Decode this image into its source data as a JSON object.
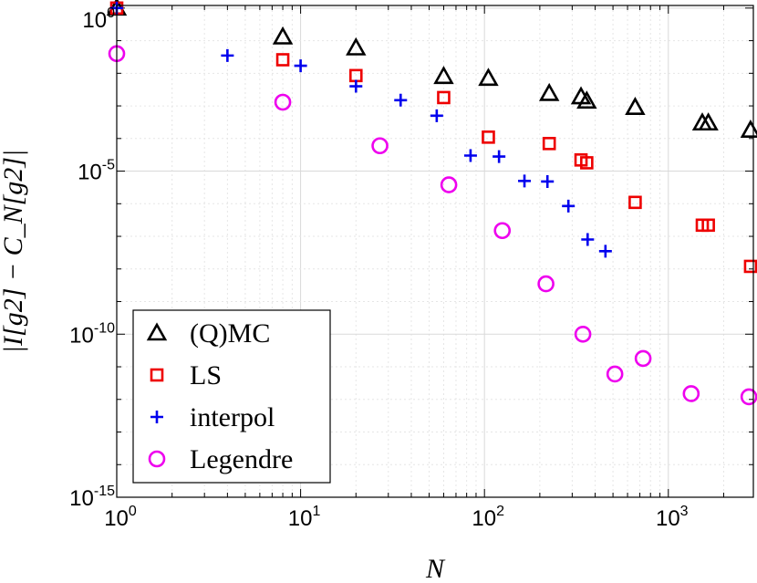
{
  "chart_data": {
    "type": "scatter",
    "title": "",
    "xlabel": "N",
    "ylabel": "|I[g2] − C_N[g2]|",
    "xscale": "log",
    "yscale": "log",
    "xlim": [
      1,
      2900
    ],
    "ylim": [
      1e-15,
      1.2
    ],
    "grid": true,
    "legend_position": "bottom-left",
    "x_ticks": [
      {
        "value": 1,
        "base": "10",
        "exp": "0"
      },
      {
        "value": 10,
        "base": "10",
        "exp": "1"
      },
      {
        "value": 100,
        "base": "10",
        "exp": "2"
      },
      {
        "value": 1000,
        "base": "10",
        "exp": "3"
      }
    ],
    "y_ticks": [
      {
        "value": 1,
        "base": "10",
        "exp": "0"
      },
      {
        "value": 1e-05,
        "base": "10",
        "exp": "-5"
      },
      {
        "value": 1e-10,
        "base": "10",
        "exp": "-10"
      },
      {
        "value": 1e-15,
        "base": "10",
        "exp": "-15"
      }
    ],
    "series": [
      {
        "name": "(Q)MC",
        "marker": "triangle",
        "color": "#000000",
        "x": [
          1,
          8,
          20,
          60,
          105,
          225,
          335,
          360,
          660,
          1530,
          1650,
          2800
        ],
        "y": [
          1.0,
          0.13,
          0.06,
          0.008,
          0.007,
          0.0024,
          0.0019,
          0.0014,
          0.0009,
          0.0003,
          0.0003,
          0.00018
        ]
      },
      {
        "name": "LS",
        "marker": "square",
        "color": "#ee0000",
        "x": [
          1,
          8,
          20,
          60,
          105,
          225,
          335,
          360,
          660,
          1530,
          1650,
          2800
        ],
        "y": [
          1.0,
          0.026,
          0.0085,
          0.0018,
          0.00011,
          7e-05,
          2.2e-05,
          1.8e-05,
          1.1e-06,
          2.2e-07,
          2.2e-07,
          1.2e-08
        ]
      },
      {
        "name": "interpol",
        "marker": "plus",
        "color": "#0000ee",
        "x": [
          1,
          4,
          10,
          20,
          35,
          55,
          84,
          120,
          165,
          220,
          286,
          364,
          455
        ],
        "y": [
          1.0,
          0.035,
          0.017,
          0.004,
          0.0015,
          0.0005,
          3e-05,
          2.8e-05,
          5e-06,
          4.8e-06,
          8.5e-07,
          8e-08,
          3.5e-08
        ]
      },
      {
        "name": "Legendre",
        "marker": "circle",
        "color": "#ee00ee",
        "x": [
          1,
          8,
          27,
          64,
          125,
          216,
          343,
          512,
          729,
          1331,
          2744
        ],
        "y": [
          0.04,
          0.0013,
          6e-05,
          3.8e-06,
          1.5e-07,
          3.5e-09,
          1e-10,
          6e-12,
          1.8e-11,
          1.5e-12,
          1.2e-12
        ]
      }
    ]
  }
}
